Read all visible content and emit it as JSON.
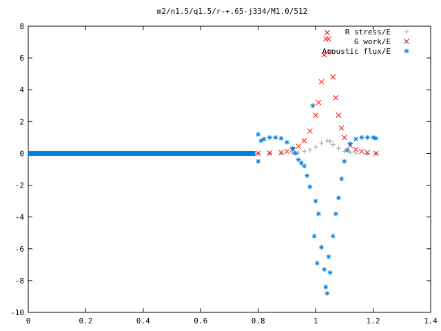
{
  "chart_data": {
    "type": "scatter",
    "title": "m2/n1.5/q1.5/r-+.65-j334/M1.0/512",
    "xlabel": "",
    "ylabel": "",
    "xlim": [
      0,
      1.4
    ],
    "ylim": [
      -10,
      8
    ],
    "x_ticks": [
      "0",
      "0.2",
      "0.4",
      "0.6",
      "0.8",
      "1",
      "1.2",
      "1.4"
    ],
    "y_ticks": [
      "8",
      "6",
      "4",
      "2",
      "0",
      "-2",
      "-4",
      "-6",
      "-8",
      "-10"
    ],
    "grid": false,
    "legend": "top-right",
    "series": [
      {
        "name": "R stress/E",
        "marker": "+",
        "color": "#a0a0a0",
        "points": [
          [
            0.8,
            0.0
          ],
          [
            0.84,
            0.0
          ],
          [
            0.88,
            0.01
          ],
          [
            0.92,
            0.04
          ],
          [
            0.94,
            0.07
          ],
          [
            0.96,
            0.12
          ],
          [
            0.98,
            0.22
          ],
          [
            1.0,
            0.4
          ],
          [
            1.02,
            0.65
          ],
          [
            1.04,
            0.8
          ],
          [
            1.05,
            0.75
          ],
          [
            1.06,
            0.55
          ],
          [
            1.08,
            0.32
          ],
          [
            1.1,
            0.14
          ],
          [
            1.12,
            0.06
          ],
          [
            1.14,
            0.02
          ],
          [
            1.18,
            0.0
          ],
          [
            1.21,
            0.0
          ]
        ]
      },
      {
        "name": "G work/E",
        "marker": "x",
        "color": "#ff0000",
        "points": [
          [
            0.8,
            0.0
          ],
          [
            0.84,
            0.02
          ],
          [
            0.88,
            0.05
          ],
          [
            0.9,
            0.12
          ],
          [
            0.92,
            0.25
          ],
          [
            0.94,
            0.45
          ],
          [
            0.96,
            0.8
          ],
          [
            0.98,
            1.4
          ],
          [
            1.0,
            2.4
          ],
          [
            1.01,
            3.2
          ],
          [
            1.02,
            4.5
          ],
          [
            1.03,
            6.2
          ],
          [
            1.035,
            7.2
          ],
          [
            1.04,
            7.6
          ],
          [
            1.045,
            7.2
          ],
          [
            1.05,
            6.4
          ],
          [
            1.06,
            4.8
          ],
          [
            1.07,
            3.5
          ],
          [
            1.08,
            2.4
          ],
          [
            1.09,
            1.6
          ],
          [
            1.1,
            1.0
          ],
          [
            1.12,
            0.5
          ],
          [
            1.14,
            0.25
          ],
          [
            1.16,
            0.12
          ],
          [
            1.18,
            0.05
          ],
          [
            1.21,
            0.0
          ]
        ]
      },
      {
        "name": "Acoustic flux/E",
        "marker": "*",
        "color": "#0080e0",
        "points": [
          [
            0.8,
            1.2
          ],
          [
            0.8,
            -0.5
          ],
          [
            0.81,
            0.8
          ],
          [
            0.82,
            0.9
          ],
          [
            0.84,
            1.0
          ],
          [
            0.86,
            1.0
          ],
          [
            0.88,
            0.95
          ],
          [
            0.9,
            0.7
          ],
          [
            0.92,
            0.3
          ],
          [
            0.93,
            0.0
          ],
          [
            0.94,
            -0.4
          ],
          [
            0.95,
            -0.6
          ],
          [
            0.96,
            -0.8
          ],
          [
            0.97,
            -1.4
          ],
          [
            0.98,
            -2.1
          ],
          [
            0.99,
            3.0
          ],
          [
            1.0,
            -3.0
          ],
          [
            1.01,
            -3.8
          ],
          [
            0.995,
            -5.2
          ],
          [
            1.005,
            -6.9
          ],
          [
            1.02,
            -5.9
          ],
          [
            1.03,
            -7.3
          ],
          [
            1.035,
            -8.4
          ],
          [
            1.04,
            -8.8
          ],
          [
            1.045,
            -6.5
          ],
          [
            1.05,
            -7.5
          ],
          [
            1.06,
            -5.2
          ],
          [
            1.07,
            -3.8
          ],
          [
            1.08,
            -2.8
          ],
          [
            1.09,
            -1.6
          ],
          [
            1.1,
            -0.5
          ],
          [
            1.11,
            0.2
          ],
          [
            1.12,
            0.6
          ],
          [
            1.14,
            0.9
          ],
          [
            1.16,
            1.0
          ],
          [
            1.18,
            1.0
          ],
          [
            1.2,
            1.0
          ],
          [
            1.21,
            0.95
          ]
        ]
      },
      {
        "name": "",
        "marker": "*",
        "color": "#0080e0",
        "points": [
          [
            0.0,
            0.0
          ],
          [
            0.79,
            0.0
          ]
        ],
        "style": "dense-band"
      }
    ]
  }
}
